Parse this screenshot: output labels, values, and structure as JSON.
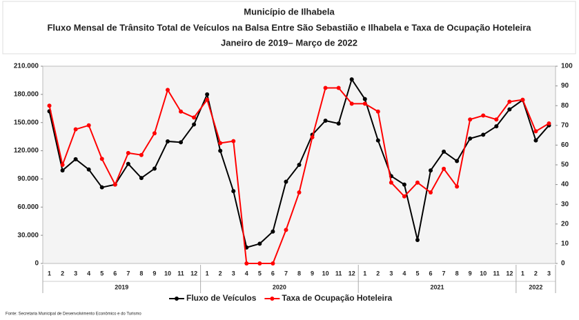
{
  "chart_data": {
    "type": "line",
    "title": "Município de Ilhabela",
    "subtitle": "Fluxo Mensal de Trânsito Total de Veículos na Balsa Entre São Sebastião e Ilhabela e Taxa de Ocupação Hoteleira",
    "subtitle2": "Janeiro de 2019– Março de 2022",
    "source": "Fonte: Secretaria Municipal de Desenvolvimento Econômico e do Turismo",
    "categories": [
      "1",
      "2",
      "3",
      "4",
      "5",
      "6",
      "7",
      "8",
      "9",
      "10",
      "11",
      "12",
      "1",
      "2",
      "3",
      "4",
      "5",
      "6",
      "7",
      "8",
      "9",
      "10",
      "11",
      "12",
      "1",
      "2",
      "3",
      "4",
      "5",
      "6",
      "7",
      "8",
      "9",
      "10",
      "11",
      "12",
      "1",
      "2",
      "3"
    ],
    "year_groups": [
      "2019",
      "2020",
      "2021",
      "2022"
    ],
    "series": [
      {
        "name": "Fluxo de Veículos",
        "color": "#000000",
        "axis": "y",
        "values": [
          162000,
          99000,
          111000,
          100000,
          81000,
          84000,
          106000,
          91000,
          101000,
          130000,
          129000,
          148000,
          180000,
          120000,
          77000,
          17000,
          21000,
          34000,
          87000,
          105000,
          137000,
          152000,
          149000,
          196000,
          175000,
          131000,
          93000,
          84000,
          25000,
          99000,
          119000,
          109000,
          133000,
          137000,
          146000,
          164000,
          174000,
          131000,
          147000
        ]
      },
      {
        "name": "Taxa de Ocupação Hoteleira",
        "color": "#ff0000",
        "axis": "y2",
        "values": [
          80,
          50,
          68,
          70,
          53,
          40,
          56,
          55,
          66,
          88,
          77,
          74,
          83,
          61,
          62,
          0,
          0,
          0,
          17,
          36,
          64,
          89,
          89,
          81,
          81,
          77,
          41,
          34,
          41,
          36,
          48,
          39,
          73,
          75,
          73,
          82,
          83,
          67,
          71
        ]
      }
    ],
    "ylim": [
      0,
      210000
    ],
    "yticks": [
      0,
      {
        "value": 30000,
        "label": "30.000"
      },
      {
        "value": 60000,
        "label": "60.000"
      },
      {
        "value": 90000,
        "label": "90.000"
      },
      {
        "value": 120000,
        "label": "120.000"
      },
      {
        "value": 150000,
        "label": "150.000"
      },
      {
        "value": 180000,
        "label": "180.000"
      },
      {
        "value": 210000,
        "label": "210.000"
      }
    ],
    "y2lim": [
      0,
      100
    ],
    "y2ticks": [
      0,
      10,
      20,
      30,
      40,
      50,
      60,
      70,
      80,
      90,
      100
    ],
    "grid": false
  }
}
